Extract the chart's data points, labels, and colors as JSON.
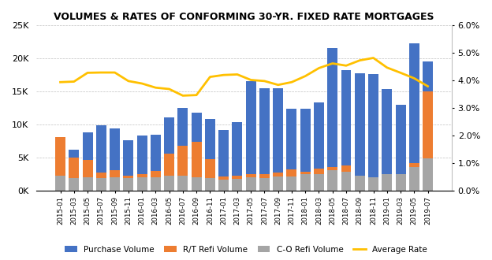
{
  "title": "VOLUMES & RATES OF CONFORMING 30-YR. FIXED RATE MORTGAGES",
  "categories": [
    "2015-01",
    "2015-03",
    "2015-05",
    "2015-07",
    "2015-09",
    "2015-11",
    "2016-01",
    "2016-03",
    "2016-05",
    "2016-07",
    "2016-09",
    "2016-11",
    "2017-01",
    "2017-03",
    "2017-05",
    "2017-07",
    "2017-09",
    "2017-11",
    "2018-01",
    "2018-03",
    "2018-05",
    "2018-07",
    "2018-09",
    "2018-11",
    "2019-01",
    "2019-03",
    "2019-05",
    "2019-07"
  ],
  "purchase_volume": [
    6500,
    6200,
    8800,
    9800,
    9400,
    7600,
    8300,
    8400,
    11000,
    12500,
    11800,
    10800,
    9100,
    10300,
    16500,
    15400,
    15400,
    12300,
    12400,
    13300,
    21500,
    18200,
    17700,
    17600,
    15300,
    12900,
    22200,
    19500
  ],
  "rt_refi_volume": [
    8000,
    4900,
    4600,
    2700,
    3000,
    2200,
    2400,
    2900,
    5600,
    6800,
    7300,
    4700,
    2100,
    2200,
    2500,
    2400,
    2700,
    3200,
    2800,
    3300,
    3500,
    3800,
    2200,
    1300,
    1400,
    2000,
    4100,
    15000
  ],
  "co_refi_volume": [
    2200,
    1900,
    2000,
    1900,
    2000,
    1900,
    2000,
    2000,
    2200,
    2200,
    2000,
    1800,
    1600,
    1700,
    2000,
    1900,
    2100,
    2100,
    2400,
    2500,
    3000,
    2800,
    2200,
    2000,
    2500,
    2400,
    3500,
    4800
  ],
  "average_rate": [
    3.93,
    3.95,
    4.27,
    4.28,
    4.28,
    3.97,
    3.88,
    3.73,
    3.68,
    3.44,
    3.46,
    4.12,
    4.19,
    4.21,
    4.01,
    3.97,
    3.83,
    3.93,
    4.15,
    4.44,
    4.61,
    4.53,
    4.72,
    4.81,
    4.46,
    4.27,
    4.07,
    3.78
  ],
  "purchase_color": "#4472C4",
  "rt_refi_color": "#ED7D31",
  "co_refi_color": "#A5A5A5",
  "rate_color": "#FFC000",
  "ylim_left": [
    0,
    25000
  ],
  "ylim_right": [
    0.0,
    6.0
  ],
  "yticks_left": [
    0,
    5000,
    10000,
    15000,
    20000,
    25000
  ],
  "ytick_labels_left": [
    "0K",
    "5K",
    "10K",
    "15K",
    "20K",
    "25K"
  ],
  "yticks_right": [
    0.0,
    1.0,
    2.0,
    3.0,
    4.0,
    5.0,
    6.0
  ],
  "ytick_labels_right": [
    "0.0%",
    "1.0%",
    "2.0%",
    "3.0%",
    "4.0%",
    "5.0%",
    "6.0%"
  ],
  "legend_labels": [
    "Purchase Volume",
    "R/T Refi Volume",
    "C-O Refi Volume",
    "Average Rate"
  ],
  "bar_width": 0.75,
  "background_color": "#FFFFFF",
  "grid_color": "#C0C0C0"
}
